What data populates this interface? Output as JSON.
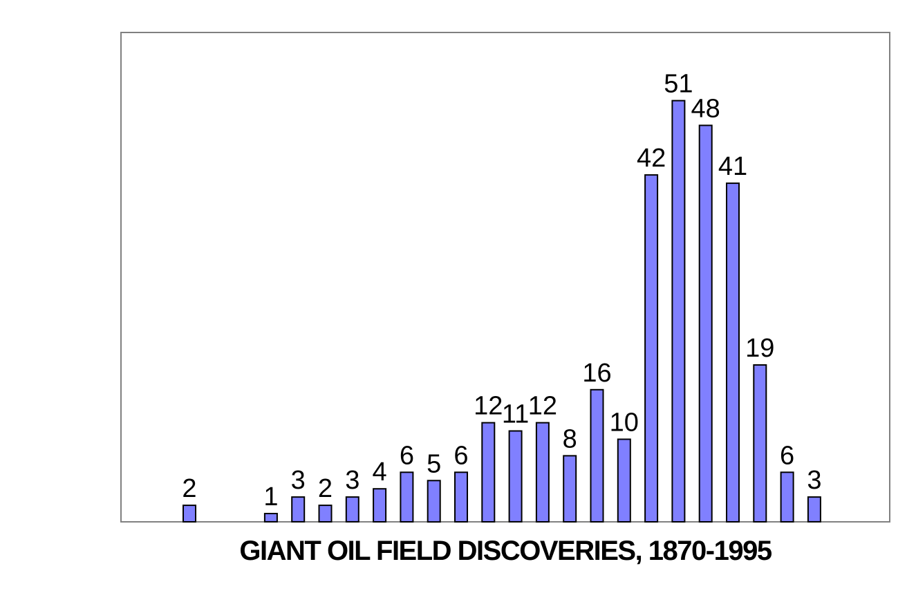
{
  "chart_data": {
    "type": "bar",
    "title": "GIANT OIL FIELD DISCOVERIES, 1870-1995",
    "xlabel": "",
    "ylabel": "",
    "values": [
      2,
      0,
      0,
      1,
      3,
      2,
      3,
      4,
      6,
      5,
      6,
      12,
      11,
      12,
      8,
      16,
      10,
      42,
      51,
      48,
      41,
      19,
      6,
      3
    ],
    "ylim": [
      0,
      60
    ],
    "grid": false,
    "legend": "none",
    "colors": {
      "bar_fill": "#8080ff",
      "bar_stroke": "#000000",
      "frame": "#808080"
    }
  }
}
